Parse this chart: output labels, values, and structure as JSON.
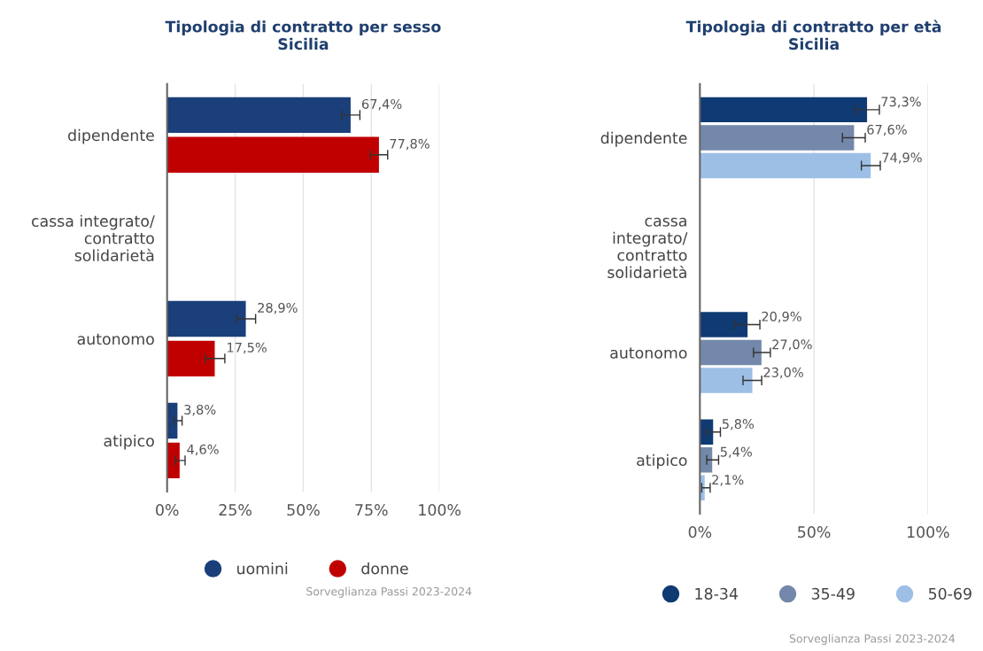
{
  "chart_data": [
    {
      "type": "bar",
      "orientation": "horizontal",
      "title": "Tipologia di contratto per sesso\nSicilia",
      "categories": [
        "dipendente",
        "cassa integrato/\ncontratto\nsolidarietà",
        "autonomo",
        "atipico"
      ],
      "series": [
        {
          "name": "uomini",
          "color": "#1a3f7a",
          "values": [
            67.4,
            null,
            28.9,
            3.8
          ],
          "errors": [
            [
              64.1,
              70.8
            ],
            null,
            [
              25.5,
              32.5
            ],
            [
              2.5,
              5.5
            ]
          ],
          "value_labels": [
            "67,4%",
            null,
            "28,9%",
            "3,8%"
          ]
        },
        {
          "name": "donne",
          "color": "#c00000",
          "values": [
            77.8,
            null,
            17.5,
            4.6
          ],
          "errors": [
            [
              74.6,
              81.0
            ],
            null,
            [
              14.0,
              21.2
            ],
            [
              3.0,
              6.6
            ]
          ],
          "value_labels": [
            "77,8%",
            null,
            "17,5%",
            "4,6%"
          ]
        }
      ],
      "xlim": [
        0,
        100
      ],
      "xticks": [
        {
          "value": 0,
          "label": "0%"
        },
        {
          "value": 25,
          "label": "25%"
        },
        {
          "value": 50,
          "label": "50%"
        },
        {
          "value": 75,
          "label": "75%"
        },
        {
          "value": 100,
          "label": "100%"
        }
      ],
      "grid": "x",
      "legend": "bottom",
      "marker": "circle",
      "annotations": [
        "Sorveglianza Passi 2023-2024"
      ]
    },
    {
      "type": "bar",
      "orientation": "horizontal",
      "title": "Tipologia di contratto per età\nSicilia",
      "categories": [
        "dipendente",
        "cassa\nintegrato/\ncontratto\nsolidarietà",
        "autonomo",
        "atipico"
      ],
      "series": [
        {
          "name": "18-34",
          "color": "#0f3a73",
          "values": [
            73.3,
            null,
            20.9,
            5.8
          ],
          "errors": [
            [
              68.0,
              78.7
            ],
            null,
            [
              15.5,
              26.3
            ],
            [
              3.0,
              9.0
            ]
          ],
          "value_labels": [
            "73,3%",
            null,
            "20,9%",
            "5,8%"
          ]
        },
        {
          "name": "35-49",
          "color": "#7388aa",
          "values": [
            67.6,
            null,
            27.0,
            5.4
          ],
          "errors": [
            [
              62.5,
              72.5
            ],
            null,
            [
              23.5,
              30.9
            ],
            [
              3.0,
              8.2
            ]
          ],
          "value_labels": [
            "67,6%",
            null,
            "27,0%",
            "5,4%"
          ]
        },
        {
          "name": "50-69",
          "color": "#9dbfe6",
          "values": [
            74.9,
            null,
            23.0,
            2.1
          ],
          "errors": [
            [
              70.8,
              79.1
            ],
            null,
            [
              18.9,
              27.1
            ],
            [
              0.8,
              4.5
            ]
          ],
          "value_labels": [
            "74,9%",
            null,
            "23,0%",
            "2,1%"
          ]
        }
      ],
      "xlim": [
        0,
        100
      ],
      "xticks": [
        {
          "value": 0,
          "label": "0%"
        },
        {
          "value": 50,
          "label": "50%"
        },
        {
          "value": 100,
          "label": "100%"
        }
      ],
      "grid": "x",
      "legend": "bottom",
      "marker": "circle",
      "annotations": [
        "Sorveglianza Passi 2023-2024"
      ]
    }
  ]
}
